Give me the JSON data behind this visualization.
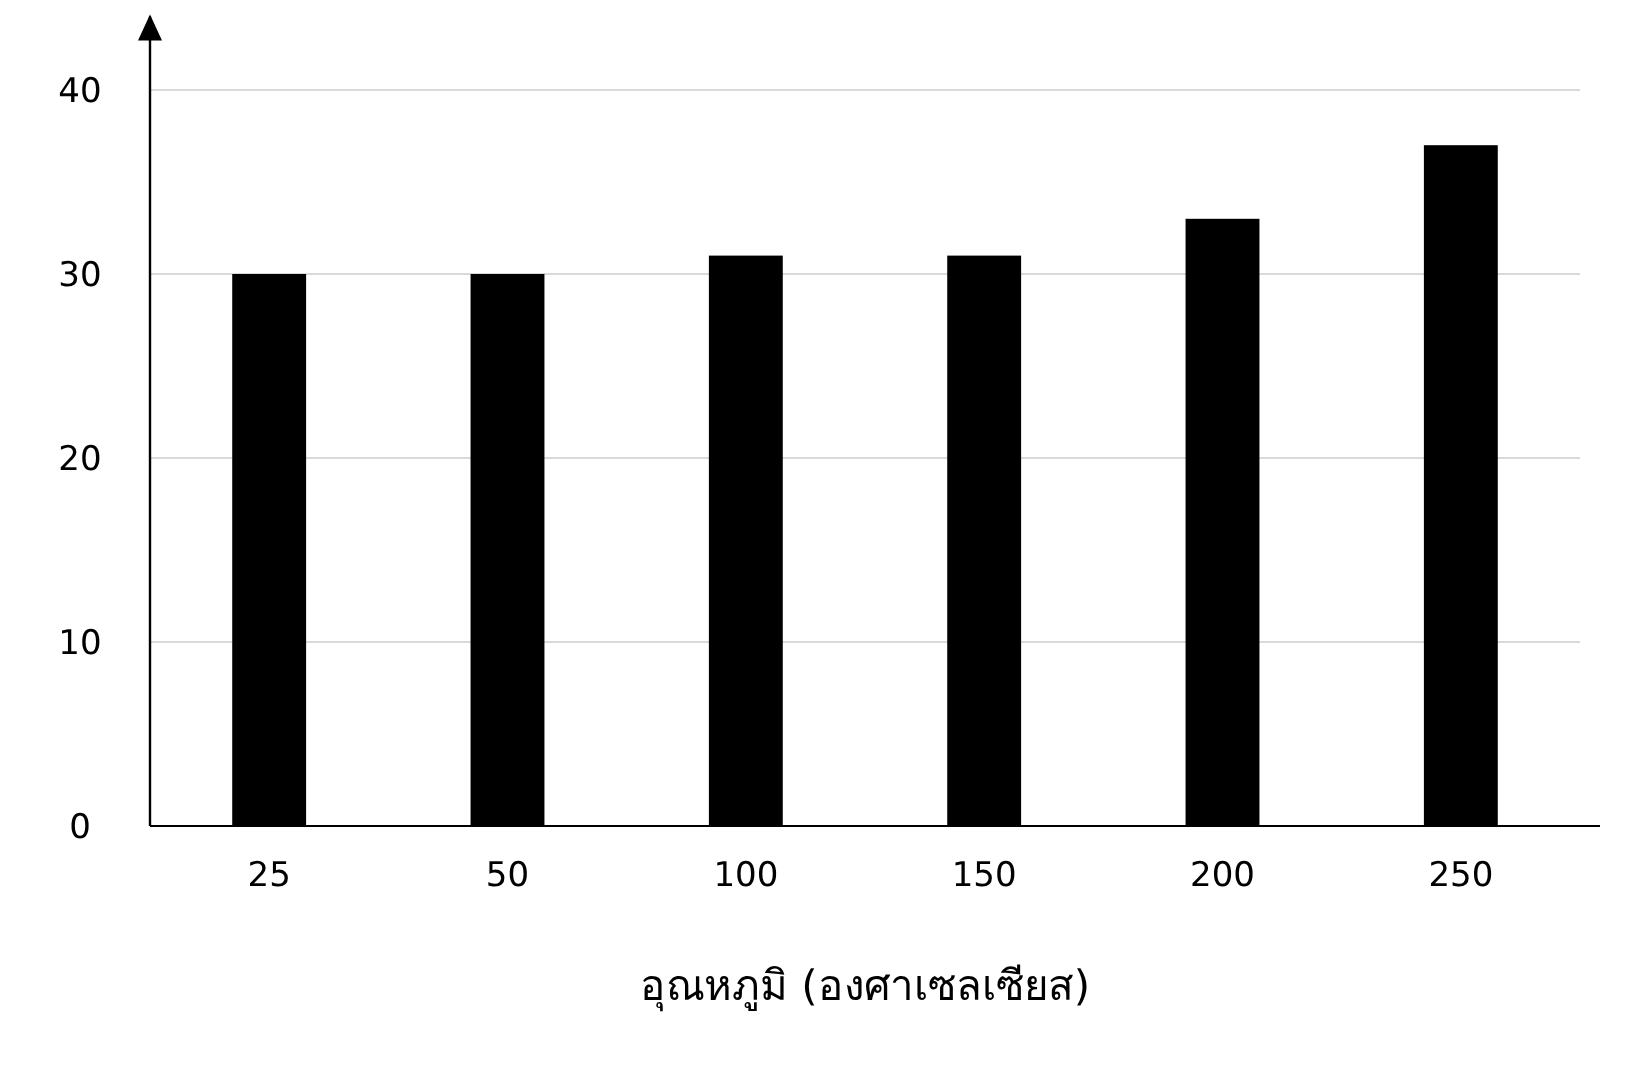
{
  "chart_data": {
    "type": "bar",
    "xlabel": "อุณหภูมิ (องศาเซลเซียส)",
    "categories": [
      "25",
      "50",
      "100",
      "150",
      "200",
      "250"
    ],
    "values": [
      30,
      30,
      31,
      31,
      33,
      37
    ],
    "color": "#000000",
    "ylim": [
      0,
      44
    ],
    "yticks": [
      0,
      10,
      20,
      30,
      40
    ],
    "grid": "y"
  }
}
